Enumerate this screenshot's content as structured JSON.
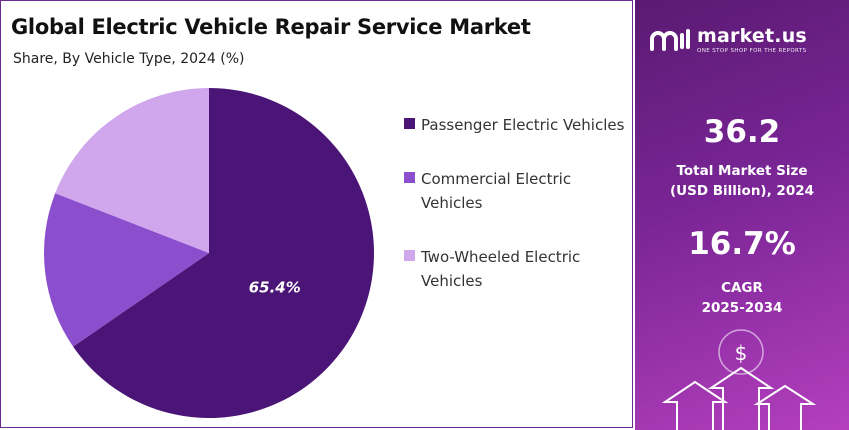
{
  "chart_data": {
    "type": "pie",
    "title": "Global Electric Vehicle Repair Service Market",
    "subtitle": "Share, By Vehicle Type, 2024 (%)",
    "categories": [
      "Passenger Electric Vehicles",
      "Commercial Electric Vehicles",
      "Two-Wheeled Electric Vehicles"
    ],
    "values": [
      65.4,
      15.5,
      19.1
    ],
    "data_labels": [
      "65.4%",
      "",
      ""
    ],
    "colors": [
      "#4b1577",
      "#8b4fce",
      "#d0a6ec"
    ],
    "legend_position": "right"
  },
  "legend": [
    {
      "label": "Passenger Electric Vehicles",
      "color": "#4b1577"
    },
    {
      "label": "Commercial Electric Vehicles",
      "color": "#8b4fce"
    },
    {
      "label": "Two-Wheeled Electric Vehicles",
      "color": "#d0a6ec"
    }
  ],
  "sidebar": {
    "brand_name": "market.us",
    "brand_tagline": "ONE STOP SHOP FOR THE REPORTS",
    "market_size_value": "36.2",
    "market_size_label_line1": "Total Market Size",
    "market_size_label_line2": "(USD Billion), 2024",
    "cagr_value": "16.7%",
    "cagr_label_line1": "CAGR",
    "cagr_label_line2": "2025-2034",
    "accent_color": "#7a2596",
    "dollar_symbol": "$"
  }
}
